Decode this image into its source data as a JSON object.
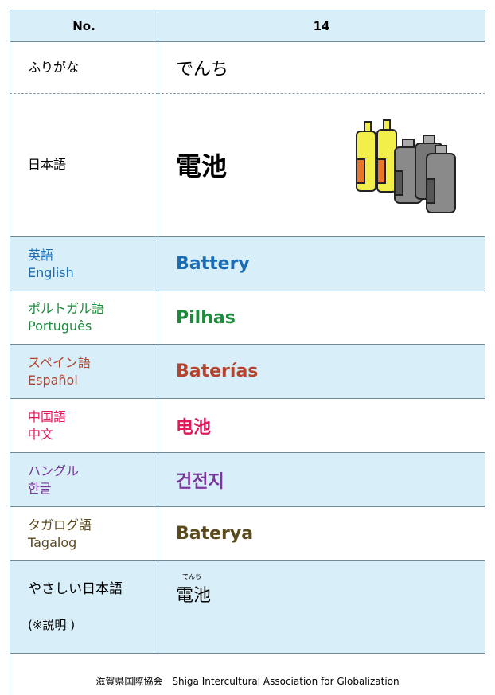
{
  "header": {
    "label": "No.",
    "value": "14"
  },
  "furigana": {
    "label": "ふりがな",
    "value": "でんち"
  },
  "japanese": {
    "label": "日本語",
    "value": "電池"
  },
  "languages": [
    {
      "label": [
        "英語",
        "English"
      ],
      "value": "Battery",
      "color": "#1a6db5"
    },
    {
      "label": [
        "ポルトガル語",
        "Português"
      ],
      "value": "Pilhas",
      "color": "#1b8b3c"
    },
    {
      "label": [
        "スペイン語",
        "Español"
      ],
      "value": "Baterías",
      "color": "#b4432d"
    },
    {
      "label": [
        "中国語",
        "中文"
      ],
      "value": "电池",
      "color": "#e0185a"
    },
    {
      "label": [
        "ハングル",
        "한글"
      ],
      "value": "건전지",
      "color": "#7a379b"
    },
    {
      "label": [
        "タガログ語",
        "Tagalog"
      ],
      "value": "Baterya",
      "color": "#5b4a1c"
    }
  ],
  "easy_japanese": {
    "label": "やさしい日本語",
    "note": "(※説明 )",
    "ruby": "でんち",
    "value": "電池"
  },
  "footer": "滋賀県国際協会　Shiga Intercultural Association for Globalization"
}
